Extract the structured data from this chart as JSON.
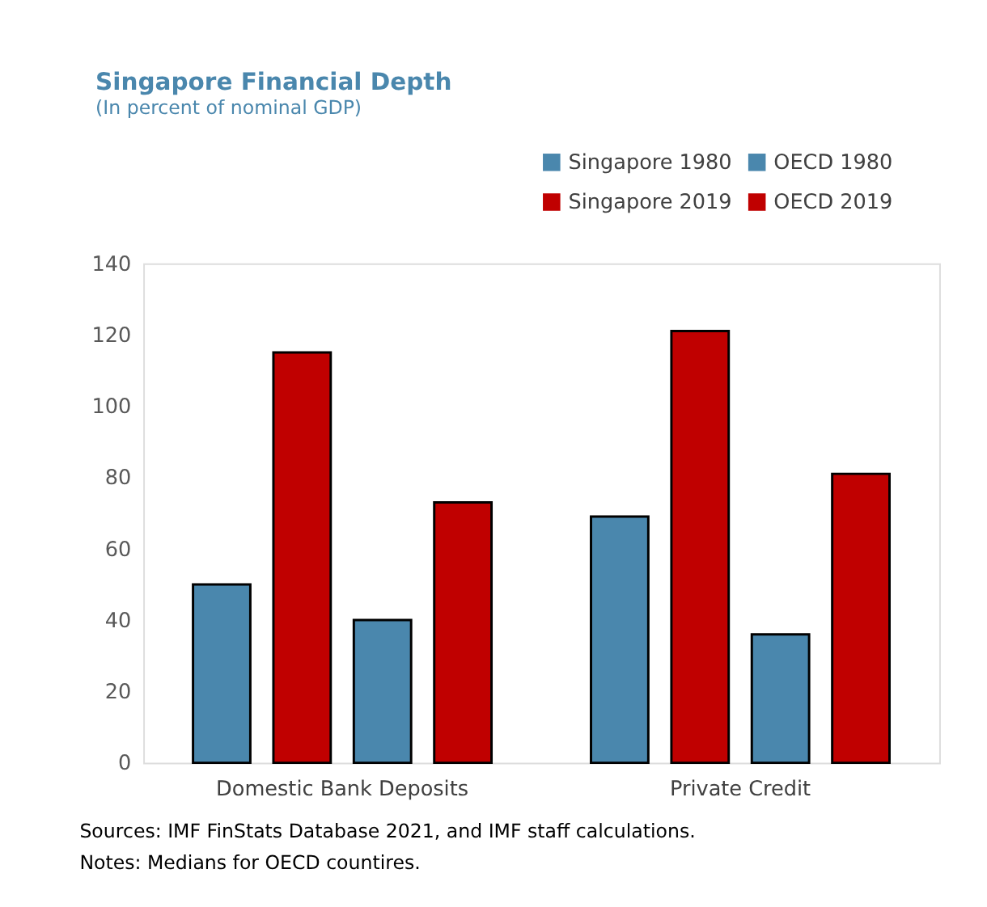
{
  "chart_data": {
    "type": "bar",
    "title": "Singapore Financial Depth",
    "subtitle": "(In percent of nominal GDP)",
    "categories": [
      "Domestic Bank Deposits",
      "Private Credit"
    ],
    "series": [
      {
        "name": "Singapore 1980",
        "color": "#4a87ad",
        "values": [
          50,
          69
        ]
      },
      {
        "name": "Singapore 2019",
        "color": "#c00000",
        "values": [
          115,
          121
        ]
      },
      {
        "name": "OECD 1980",
        "color": "#4a87ad",
        "values": [
          40,
          36
        ]
      },
      {
        "name": "OECD 2019",
        "color": "#c00000",
        "values": [
          73,
          81
        ]
      }
    ],
    "ylim": [
      0,
      140
    ],
    "yticks": [
      0,
      20,
      40,
      60,
      80,
      100,
      120,
      140
    ],
    "grid": false,
    "legend": "top right",
    "annotations": [
      "Sources: IMF FinStats Database 2021, and IMF staff calculations.",
      "Notes: Medians for OECD countires."
    ]
  }
}
